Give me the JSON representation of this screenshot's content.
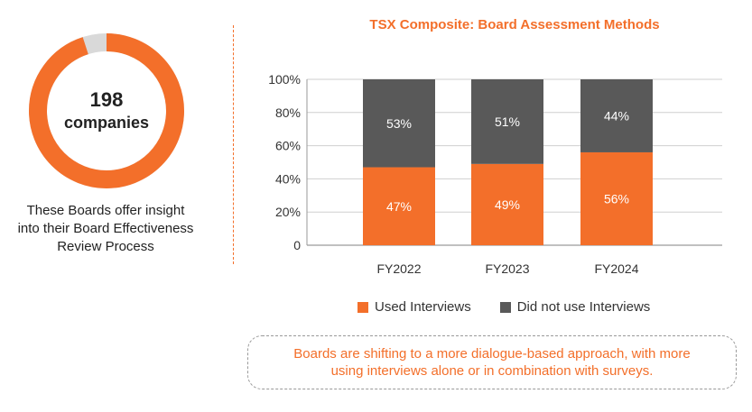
{
  "summary": {
    "count": "198",
    "unit": "companies",
    "caption_lines": [
      "These Boards offer insight",
      "into their Board Effectiveness",
      "Review Process"
    ],
    "donut_fill_fraction": 0.95,
    "colors": {
      "fill": "#f36f2a",
      "rest": "#d9d9d9"
    }
  },
  "chart_data": {
    "type": "bar",
    "stacked": true,
    "title": "TSX Composite: Board Assessment Methods",
    "categories": [
      "FY2022",
      "FY2023",
      "FY2024"
    ],
    "series": [
      {
        "name": "Used Interviews",
        "values": [
          47,
          49,
          56
        ],
        "labels": [
          "47%",
          "49%",
          "56%"
        ],
        "color": "#f36f2a"
      },
      {
        "name": "Did not use Interviews",
        "values": [
          53,
          51,
          44
        ],
        "labels": [
          "53%",
          "51%",
          "44%"
        ],
        "color": "#595959"
      }
    ],
    "ylim": [
      0,
      100
    ],
    "yticks": [
      "0",
      "20%",
      "40%",
      "60%",
      "80%",
      "100%"
    ],
    "grid": true,
    "legend_position": "bottom"
  },
  "note": {
    "lines": [
      "Boards are shifting to a more dialogue-based approach, with more",
      "using interviews alone or in combination with surveys."
    ]
  }
}
